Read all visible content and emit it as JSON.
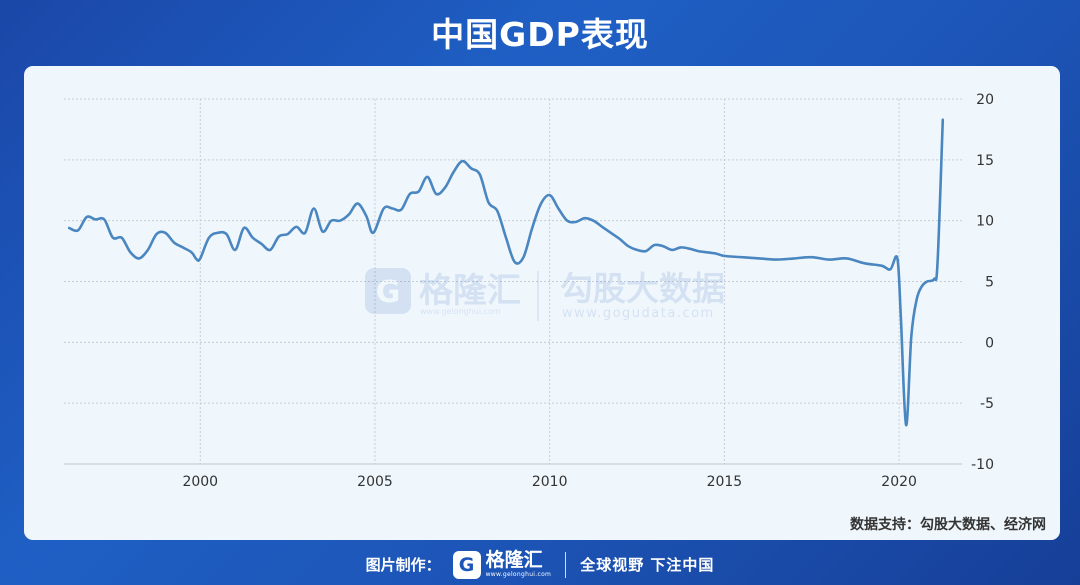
{
  "header": {
    "title": "中国GDP表现"
  },
  "watermark": {
    "brand1_name": "格隆汇",
    "brand1_url": "www.gelonghui.com",
    "brand2_name": "勾股大数据",
    "brand2_url": "www.gogudata.com"
  },
  "source_note": "数据支持：勾股大数据、经济网",
  "footer": {
    "credit_label": "图片制作：",
    "brand_name": "格隆汇",
    "brand_url": "www.gelonghui.com",
    "slogan": "全球视野 下注中国"
  },
  "colors": {
    "line": "#4a86c0",
    "grid": "#c8cdd4",
    "background": "#f0f7fc"
  },
  "chart_data": {
    "type": "line",
    "title": "中国GDP表现",
    "xlabel": "",
    "ylabel": "",
    "xlim": [
      1996.1,
      2021.8
    ],
    "ylim": [
      -10,
      20
    ],
    "xticks": [
      2000,
      2005,
      2010,
      2015,
      2020
    ],
    "yticks": [
      20,
      15,
      10,
      5,
      0,
      -5,
      -10
    ],
    "y_axis_position": "right",
    "grid": true,
    "series": [
      {
        "name": "",
        "points": [
          [
            1996.25,
            9.4
          ],
          [
            1996.5,
            9.2
          ],
          [
            1996.75,
            10.3
          ],
          [
            1997.0,
            10.1
          ],
          [
            1997.25,
            10.1
          ],
          [
            1997.5,
            8.6
          ],
          [
            1997.75,
            8.6
          ],
          [
            1998.0,
            7.4
          ],
          [
            1998.25,
            6.9
          ],
          [
            1998.5,
            7.6
          ],
          [
            1998.75,
            8.9
          ],
          [
            1999.0,
            9.0
          ],
          [
            1999.25,
            8.2
          ],
          [
            1999.5,
            7.8
          ],
          [
            1999.75,
            7.4
          ],
          [
            1999.9,
            6.8
          ],
          [
            2000.0,
            6.9
          ],
          [
            2000.25,
            8.6
          ],
          [
            2000.5,
            9.0
          ],
          [
            2000.75,
            8.9
          ],
          [
            2001.0,
            7.6
          ],
          [
            2001.25,
            9.4
          ],
          [
            2001.5,
            8.6
          ],
          [
            2001.75,
            8.1
          ],
          [
            2002.0,
            7.6
          ],
          [
            2002.25,
            8.7
          ],
          [
            2002.5,
            8.9
          ],
          [
            2002.75,
            9.5
          ],
          [
            2003.0,
            9.0
          ],
          [
            2003.25,
            11.0
          ],
          [
            2003.5,
            9.1
          ],
          [
            2003.75,
            10.0
          ],
          [
            2004.0,
            10.0
          ],
          [
            2004.25,
            10.5
          ],
          [
            2004.5,
            11.4
          ],
          [
            2004.75,
            10.4
          ],
          [
            2004.95,
            9.0
          ],
          [
            2005.25,
            11.0
          ],
          [
            2005.5,
            11.0
          ],
          [
            2005.75,
            10.9
          ],
          [
            2006.0,
            12.2
          ],
          [
            2006.25,
            12.4
          ],
          [
            2006.5,
            13.6
          ],
          [
            2006.75,
            12.2
          ],
          [
            2007.0,
            12.7
          ],
          [
            2007.25,
            14.0
          ],
          [
            2007.5,
            14.9
          ],
          [
            2007.75,
            14.3
          ],
          [
            2008.0,
            13.8
          ],
          [
            2008.25,
            11.5
          ],
          [
            2008.5,
            10.8
          ],
          [
            2008.75,
            8.6
          ],
          [
            2009.0,
            6.6
          ],
          [
            2009.25,
            7.0
          ],
          [
            2009.5,
            9.4
          ],
          [
            2009.75,
            11.4
          ],
          [
            2010.0,
            12.1
          ],
          [
            2010.25,
            11.0
          ],
          [
            2010.5,
            10.0
          ],
          [
            2010.75,
            9.9
          ],
          [
            2011.0,
            10.2
          ],
          [
            2011.25,
            10.0
          ],
          [
            2011.5,
            9.5
          ],
          [
            2011.75,
            9.0
          ],
          [
            2012.0,
            8.5
          ],
          [
            2012.25,
            7.9
          ],
          [
            2012.5,
            7.6
          ],
          [
            2012.75,
            7.5
          ],
          [
            2013.0,
            8.0
          ],
          [
            2013.25,
            7.9
          ],
          [
            2013.5,
            7.6
          ],
          [
            2013.75,
            7.8
          ],
          [
            2014.0,
            7.7
          ],
          [
            2014.25,
            7.5
          ],
          [
            2014.5,
            7.4
          ],
          [
            2014.75,
            7.3
          ],
          [
            2015.0,
            7.1
          ],
          [
            2015.5,
            7.0
          ],
          [
            2016.0,
            6.9
          ],
          [
            2016.5,
            6.8
          ],
          [
            2017.0,
            6.9
          ],
          [
            2017.5,
            7.0
          ],
          [
            2018.0,
            6.8
          ],
          [
            2018.5,
            6.9
          ],
          [
            2019.0,
            6.5
          ],
          [
            2019.5,
            6.3
          ],
          [
            2019.75,
            6.0
          ],
          [
            2019.95,
            6.9
          ],
          [
            2020.05,
            2.0
          ],
          [
            2020.2,
            -6.8
          ],
          [
            2020.35,
            0.5
          ],
          [
            2020.5,
            3.5
          ],
          [
            2020.65,
            4.6
          ],
          [
            2020.8,
            5.0
          ],
          [
            2021.0,
            5.2
          ],
          [
            2021.1,
            6.5
          ],
          [
            2021.25,
            18.3
          ]
        ]
      }
    ]
  }
}
